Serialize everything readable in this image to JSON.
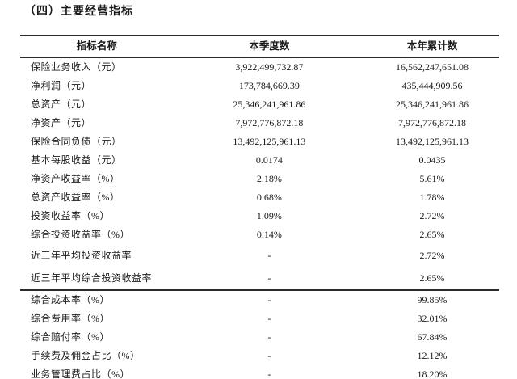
{
  "page": {
    "title": "（四）主要经营指标"
  },
  "table": {
    "headers": {
      "indicator": "指标名称",
      "quarter": "本季度数",
      "ytd": "本年累计数"
    },
    "sections": [
      {
        "rows": [
          {
            "name": "保险业务收入（元）",
            "quarter": "3,922,499,732.87",
            "ytd": "16,562,247,651.08"
          },
          {
            "name": "净利润（元）",
            "quarter": "173,784,669.39",
            "ytd": "435,444,909.56"
          },
          {
            "name": "总资产（元）",
            "quarter": "25,346,241,961.86",
            "ytd": "25,346,241,961.86"
          },
          {
            "name": "净资产（元）",
            "quarter": "7,972,776,872.18",
            "ytd": "7,972,776,872.18"
          },
          {
            "name": "保险合同负债（元）",
            "quarter": "13,492,125,961.13",
            "ytd": "13,492,125,961.13"
          },
          {
            "name": "基本每股收益（元）",
            "quarter": "0.0174",
            "ytd": "0.0435"
          },
          {
            "name": "净资产收益率（%）",
            "quarter": "2.18%",
            "ytd": "5.61%"
          },
          {
            "name": "总资产收益率（%）",
            "quarter": "0.68%",
            "ytd": "1.78%"
          },
          {
            "name": "投资收益率（%）",
            "quarter": "1.09%",
            "ytd": "2.72%"
          },
          {
            "name": "综合投资收益率（%）",
            "quarter": "0.14%",
            "ytd": "2.65%"
          },
          {
            "name": "近三年平均投资收益率",
            "quarter": "-",
            "ytd": "2.72%",
            "tall": true
          },
          {
            "name": "近三年平均综合投资收益率",
            "quarter": "-",
            "ytd": "2.65%",
            "tall": true
          }
        ]
      },
      {
        "rows": [
          {
            "name": "综合成本率（%）",
            "quarter": "-",
            "ytd": "99.85%"
          },
          {
            "name": "综合费用率（%）",
            "quarter": "-",
            "ytd": "32.01%"
          },
          {
            "name": "综合赔付率（%）",
            "quarter": "-",
            "ytd": "67.84%"
          },
          {
            "name": "手续费及佣金占比（%）",
            "quarter": "-",
            "ytd": "12.12%"
          },
          {
            "name": "业务管理费占比（%）",
            "quarter": "-",
            "ytd": "18.20%"
          }
        ]
      }
    ]
  },
  "colors": {
    "text": "#1a1a1a",
    "rule_line": "#2b2b2b",
    "background": "#ffffff"
  }
}
